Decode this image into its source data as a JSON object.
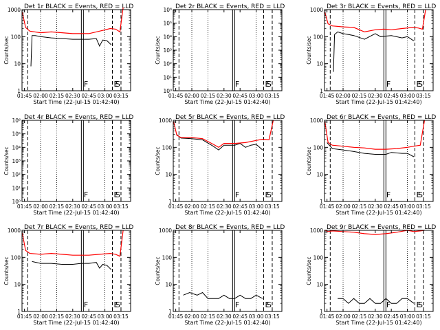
{
  "colors": {
    "events": "#000000",
    "lld": "#ff0000",
    "axis": "#000000"
  },
  "chart_data": [
    {
      "type": "line",
      "title": "Det 1r BLACK = Events, RED = LLD",
      "xlabel": "Start Time (22-Jul-15 01:42:40)",
      "ylabel": "Counts/sec",
      "xlim": [
        "01:42:40",
        "03:24:00"
      ],
      "ylim": [
        1,
        1000
      ],
      "yscale": "log",
      "xticks": [
        "01:45",
        "02:00",
        "02:15",
        "02:30",
        "02:45",
        "03:00",
        "03:15"
      ],
      "yticks": [
        "1",
        "10",
        "100",
        "1000"
      ],
      "markers": {
        "E": "03:07",
        "S": "03:15",
        "F": "02:39"
      },
      "series": [
        {
          "name": "Events",
          "x": [
            "01:51",
            "01:52",
            "01:55",
            "02:00",
            "02:10",
            "02:20",
            "02:30",
            "02:38",
            "02:45",
            "02:52",
            "02:55",
            "02:58",
            "03:02",
            "03:06"
          ],
          "y": [
            8,
            110,
            110,
            100,
            90,
            85,
            80,
            80,
            80,
            85,
            45,
            75,
            70,
            50
          ]
        },
        {
          "name": "LLD",
          "x": [
            "01:43",
            "01:46",
            "01:50",
            "02:00",
            "02:10",
            "02:20",
            "02:30",
            "02:38",
            "02:45",
            "02:55",
            "03:05",
            "03:10",
            "03:14",
            "03:17"
          ],
          "y": [
            800,
            220,
            160,
            140,
            150,
            140,
            130,
            130,
            130,
            160,
            200,
            190,
            150,
            1200
          ]
        }
      ]
    },
    {
      "type": "line",
      "title": "Det 2r BLACK = Events, RED = LLD",
      "xlabel": "Start Time (22-Jul-15 01:42:40)",
      "ylabel": "Counts/sec",
      "xlim": [
        "01:42:40",
        "03:24:00"
      ],
      "ylim": [
        1,
        1000000
      ],
      "yscale": "log",
      "xticks": [
        "01:45",
        "02:00",
        "02:15",
        "02:30",
        "02:45",
        "03:00",
        "03:15"
      ],
      "yticks": [
        "10⁰",
        "10¹",
        "10²",
        "10³",
        "10⁴",
        "10⁵",
        "10⁶"
      ],
      "markers": {
        "E": "03:07",
        "S": "03:15",
        "F": "02:39"
      },
      "series": []
    },
    {
      "type": "line",
      "title": "Det 3r BLACK = Events, RED = LLD",
      "xlabel": "Start Time (22-Jul-15 01:42:40)",
      "ylabel": "Counts/sec",
      "xlim": [
        "01:42:40",
        "03:24:00"
      ],
      "ylim": [
        1,
        1000
      ],
      "yscale": "log",
      "xticks": [
        "01:45",
        "02:00",
        "02:15",
        "02:30",
        "02:45",
        "03:00",
        "03:15"
      ],
      "yticks": [
        "1",
        "10",
        "100",
        "1000"
      ],
      "markers": {
        "E": "03:07",
        "S": "03:15",
        "F": "02:39"
      },
      "series": [
        {
          "name": "Events",
          "x": [
            "01:51",
            "01:52",
            "01:55",
            "02:00",
            "02:05",
            "02:10",
            "02:20",
            "02:30",
            "02:35",
            "02:45",
            "02:55",
            "03:00",
            "03:06"
          ],
          "y": [
            5,
            120,
            150,
            130,
            120,
            110,
            80,
            130,
            100,
            110,
            90,
            100,
            70
          ]
        },
        {
          "name": "LLD",
          "x": [
            "01:43",
            "01:46",
            "01:50",
            "02:00",
            "02:10",
            "02:20",
            "02:30",
            "02:38",
            "02:45",
            "02:55",
            "03:05",
            "03:10",
            "03:14",
            "03:17"
          ],
          "y": [
            800,
            300,
            250,
            230,
            220,
            150,
            180,
            190,
            180,
            200,
            220,
            210,
            190,
            1000
          ]
        }
      ]
    },
    {
      "type": "line",
      "title": "Det 4r BLACK = Events, RED = LLD",
      "xlabel": "Start Time (22-Jul-15 01:42:40)",
      "ylabel": "Counts/sec",
      "xlim": [
        "01:42:40",
        "03:24:00"
      ],
      "ylim": [
        1,
        1000000
      ],
      "yscale": "log",
      "xticks": [
        "01:45",
        "02:00",
        "02:15",
        "02:30",
        "02:45",
        "03:00",
        "03:15"
      ],
      "yticks": [
        "10⁰",
        "10¹",
        "10²",
        "10³",
        "10⁴",
        "10⁵",
        "10⁶"
      ],
      "markers": {
        "E": "03:07",
        "S": "03:15",
        "F": "02:39"
      },
      "series": []
    },
    {
      "type": "line",
      "title": "Det 5r BLACK = Events, RED = LLD",
      "xlabel": "Start Time (22-Jul-15 01:42:40)",
      "ylabel": "Counts/sec",
      "xlim": [
        "01:42:40",
        "03:24:00"
      ],
      "ylim": [
        1,
        1000
      ],
      "yscale": "log",
      "xticks": [
        "01:45",
        "02:00",
        "02:15",
        "02:30",
        "02:45",
        "03:00",
        "03:15"
      ],
      "yticks": [
        "1",
        "10",
        "100",
        "1000"
      ],
      "markers": {
        "E": "03:07",
        "S": "03:15",
        "F": "02:39"
      },
      "series": [
        {
          "name": "Events",
          "x": [
            "01:46",
            "01:50",
            "02:00",
            "02:10",
            "02:20",
            "02:25",
            "02:30",
            "02:40",
            "02:45",
            "02:50",
            "02:55",
            "03:00",
            "03:06"
          ],
          "y": [
            300,
            220,
            210,
            190,
            110,
            80,
            120,
            120,
            140,
            100,
            120,
            130,
            80
          ]
        },
        {
          "name": "LLD",
          "x": [
            "01:43",
            "01:46",
            "01:50",
            "02:00",
            "02:10",
            "02:20",
            "02:25",
            "02:30",
            "02:40",
            "02:50",
            "03:00",
            "03:06",
            "03:12",
            "03:16"
          ],
          "y": [
            900,
            280,
            230,
            230,
            210,
            130,
            100,
            140,
            140,
            150,
            180,
            200,
            190,
            1000
          ]
        }
      ]
    },
    {
      "type": "line",
      "title": "Det 6r BLACK = Events, RED = LLD",
      "xlabel": "Start Time (22-Jul-15 01:42:40)",
      "ylabel": "Counts/sec",
      "xlim": [
        "01:42:40",
        "03:24:00"
      ],
      "ylim": [
        1,
        1000
      ],
      "yscale": "log",
      "xticks": [
        "01:45",
        "02:00",
        "02:15",
        "02:30",
        "02:45",
        "03:00",
        "03:15"
      ],
      "yticks": [
        "1",
        "10",
        "100",
        "1000"
      ],
      "markers": {
        "E": "03:07",
        "S": "03:15",
        "F": "02:39"
      },
      "series": [
        {
          "name": "Events",
          "x": [
            "01:45",
            "01:50",
            "02:00",
            "02:10",
            "02:20",
            "02:30",
            "02:40",
            "02:45",
            "02:55",
            "03:00",
            "03:06"
          ],
          "y": [
            150,
            90,
            80,
            70,
            60,
            55,
            55,
            65,
            60,
            60,
            45
          ]
        },
        {
          "name": "LLD",
          "x": [
            "01:43",
            "01:46",
            "01:50",
            "02:00",
            "02:10",
            "02:20",
            "02:30",
            "02:40",
            "02:50",
            "03:00",
            "03:06",
            "03:12",
            "03:16"
          ],
          "y": [
            900,
            150,
            120,
            110,
            100,
            95,
            85,
            85,
            90,
            100,
            110,
            120,
            1000
          ]
        }
      ]
    },
    {
      "type": "line",
      "title": "Det 7r BLACK = Events, RED = LLD",
      "xlabel": "Start Time (22-Jul-15 01:42:40)",
      "ylabel": "Counts/sec",
      "xlim": [
        "01:42:40",
        "03:24:00"
      ],
      "ylim": [
        1,
        1000
      ],
      "yscale": "log",
      "xticks": [
        "01:45",
        "02:00",
        "02:15",
        "02:30",
        "02:45",
        "03:00",
        "03:15"
      ],
      "yticks": [
        "1",
        "10",
        "100",
        "1000"
      ],
      "markers": {
        "E": "03:07",
        "S": "03:15",
        "F": "02:39"
      },
      "series": [
        {
          "name": "Events",
          "x": [
            "01:52",
            "02:00",
            "02:10",
            "02:20",
            "02:30",
            "02:38",
            "02:45",
            "02:52",
            "02:55",
            "02:58",
            "03:02",
            "03:06"
          ],
          "y": [
            70,
            60,
            60,
            55,
            55,
            60,
            60,
            65,
            40,
            55,
            50,
            35
          ]
        },
        {
          "name": "LLD",
          "x": [
            "01:43",
            "01:46",
            "01:50",
            "02:00",
            "02:10",
            "02:20",
            "02:30",
            "02:38",
            "02:45",
            "02:55",
            "03:05",
            "03:10",
            "03:14",
            "03:17"
          ],
          "y": [
            800,
            180,
            140,
            130,
            140,
            130,
            120,
            120,
            120,
            130,
            140,
            130,
            110,
            1000
          ]
        }
      ]
    },
    {
      "type": "line",
      "title": "Det 8r BLACK = Events, RED = LLD",
      "xlabel": "Start Time (22-Jul-15 01:42:40)",
      "ylabel": "Counts/sec",
      "xlim": [
        "01:42:40",
        "03:24:00"
      ],
      "ylim": [
        1,
        1000
      ],
      "yscale": "log",
      "xticks": [
        "01:45",
        "02:00",
        "02:15",
        "02:30",
        "02:45",
        "03:00",
        "03:15"
      ],
      "yticks": [
        "1",
        "10",
        "100",
        "1000"
      ],
      "markers": {
        "E": "03:07",
        "S": "03:15",
        "F": "02:39"
      },
      "series": [
        {
          "name": "Events",
          "x": [
            "01:52",
            "01:58",
            "02:05",
            "02:10",
            "02:15",
            "02:20",
            "02:25",
            "02:30",
            "02:35",
            "02:40",
            "02:45",
            "02:50",
            "02:55",
            "03:00",
            "03:06"
          ],
          "y": [
            4,
            5,
            4,
            5,
            3,
            3,
            3,
            4,
            3,
            3,
            4,
            3,
            3,
            4,
            3
          ]
        }
      ]
    },
    {
      "type": "line",
      "title": "Det 9r BLACK = Events, RED = LLD",
      "xlabel": "Start Time (22-Jul-15 01:42:40)",
      "ylabel": "Counts/sec",
      "xlim": [
        "01:42:40",
        "03:24:00"
      ],
      "ylim": [
        1,
        1000
      ],
      "yscale": "log",
      "xticks": [
        "01:45",
        "02:00",
        "02:15",
        "02:30",
        "02:45",
        "03:00",
        "03:15"
      ],
      "yticks": [
        "1",
        "10",
        "100",
        "1000"
      ],
      "markers": {
        "E": "03:07",
        "S": "03:15",
        "F": "02:39"
      },
      "series": [
        {
          "name": "Events",
          "x": [
            "01:55",
            "02:00",
            "02:05",
            "02:10",
            "02:15",
            "02:20",
            "02:25",
            "02:30",
            "02:35",
            "02:40",
            "02:45",
            "02:50",
            "02:55",
            "03:00",
            "03:06"
          ],
          "y": [
            3,
            3,
            2,
            3,
            2,
            2,
            3,
            2,
            2,
            3,
            2,
            2,
            3,
            3,
            2
          ]
        },
        {
          "name": "LLD",
          "x": [
            "01:43",
            "01:46",
            "01:50",
            "02:00",
            "02:10",
            "02:20",
            "02:30",
            "02:40",
            "02:50",
            "03:00",
            "03:06",
            "03:12",
            "03:16"
          ],
          "y": [
            1000,
            900,
            950,
            900,
            850,
            750,
            700,
            750,
            850,
            1000,
            900,
            950,
            1000
          ]
        }
      ]
    }
  ]
}
